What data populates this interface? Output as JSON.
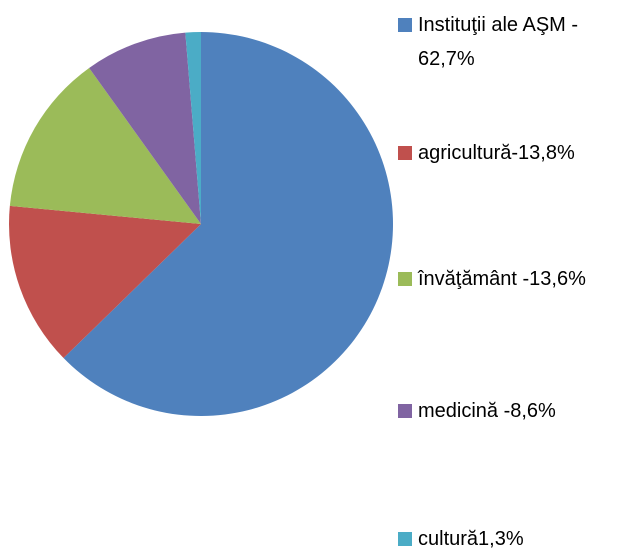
{
  "chart_data": {
    "type": "pie",
    "categories": [
      "Instituţii ale AŞM - 62,7%",
      "agricultură-13,8%",
      "învăţământ -13,6%",
      "medicină -8,6%",
      "cultură1,3%"
    ],
    "values": [
      62.7,
      13.8,
      13.6,
      8.6,
      1.3
    ],
    "colors": [
      "#4f81bd",
      "#c0504d",
      "#9bbb59",
      "#8064a2",
      "#4bacc6"
    ],
    "legend": "right"
  }
}
